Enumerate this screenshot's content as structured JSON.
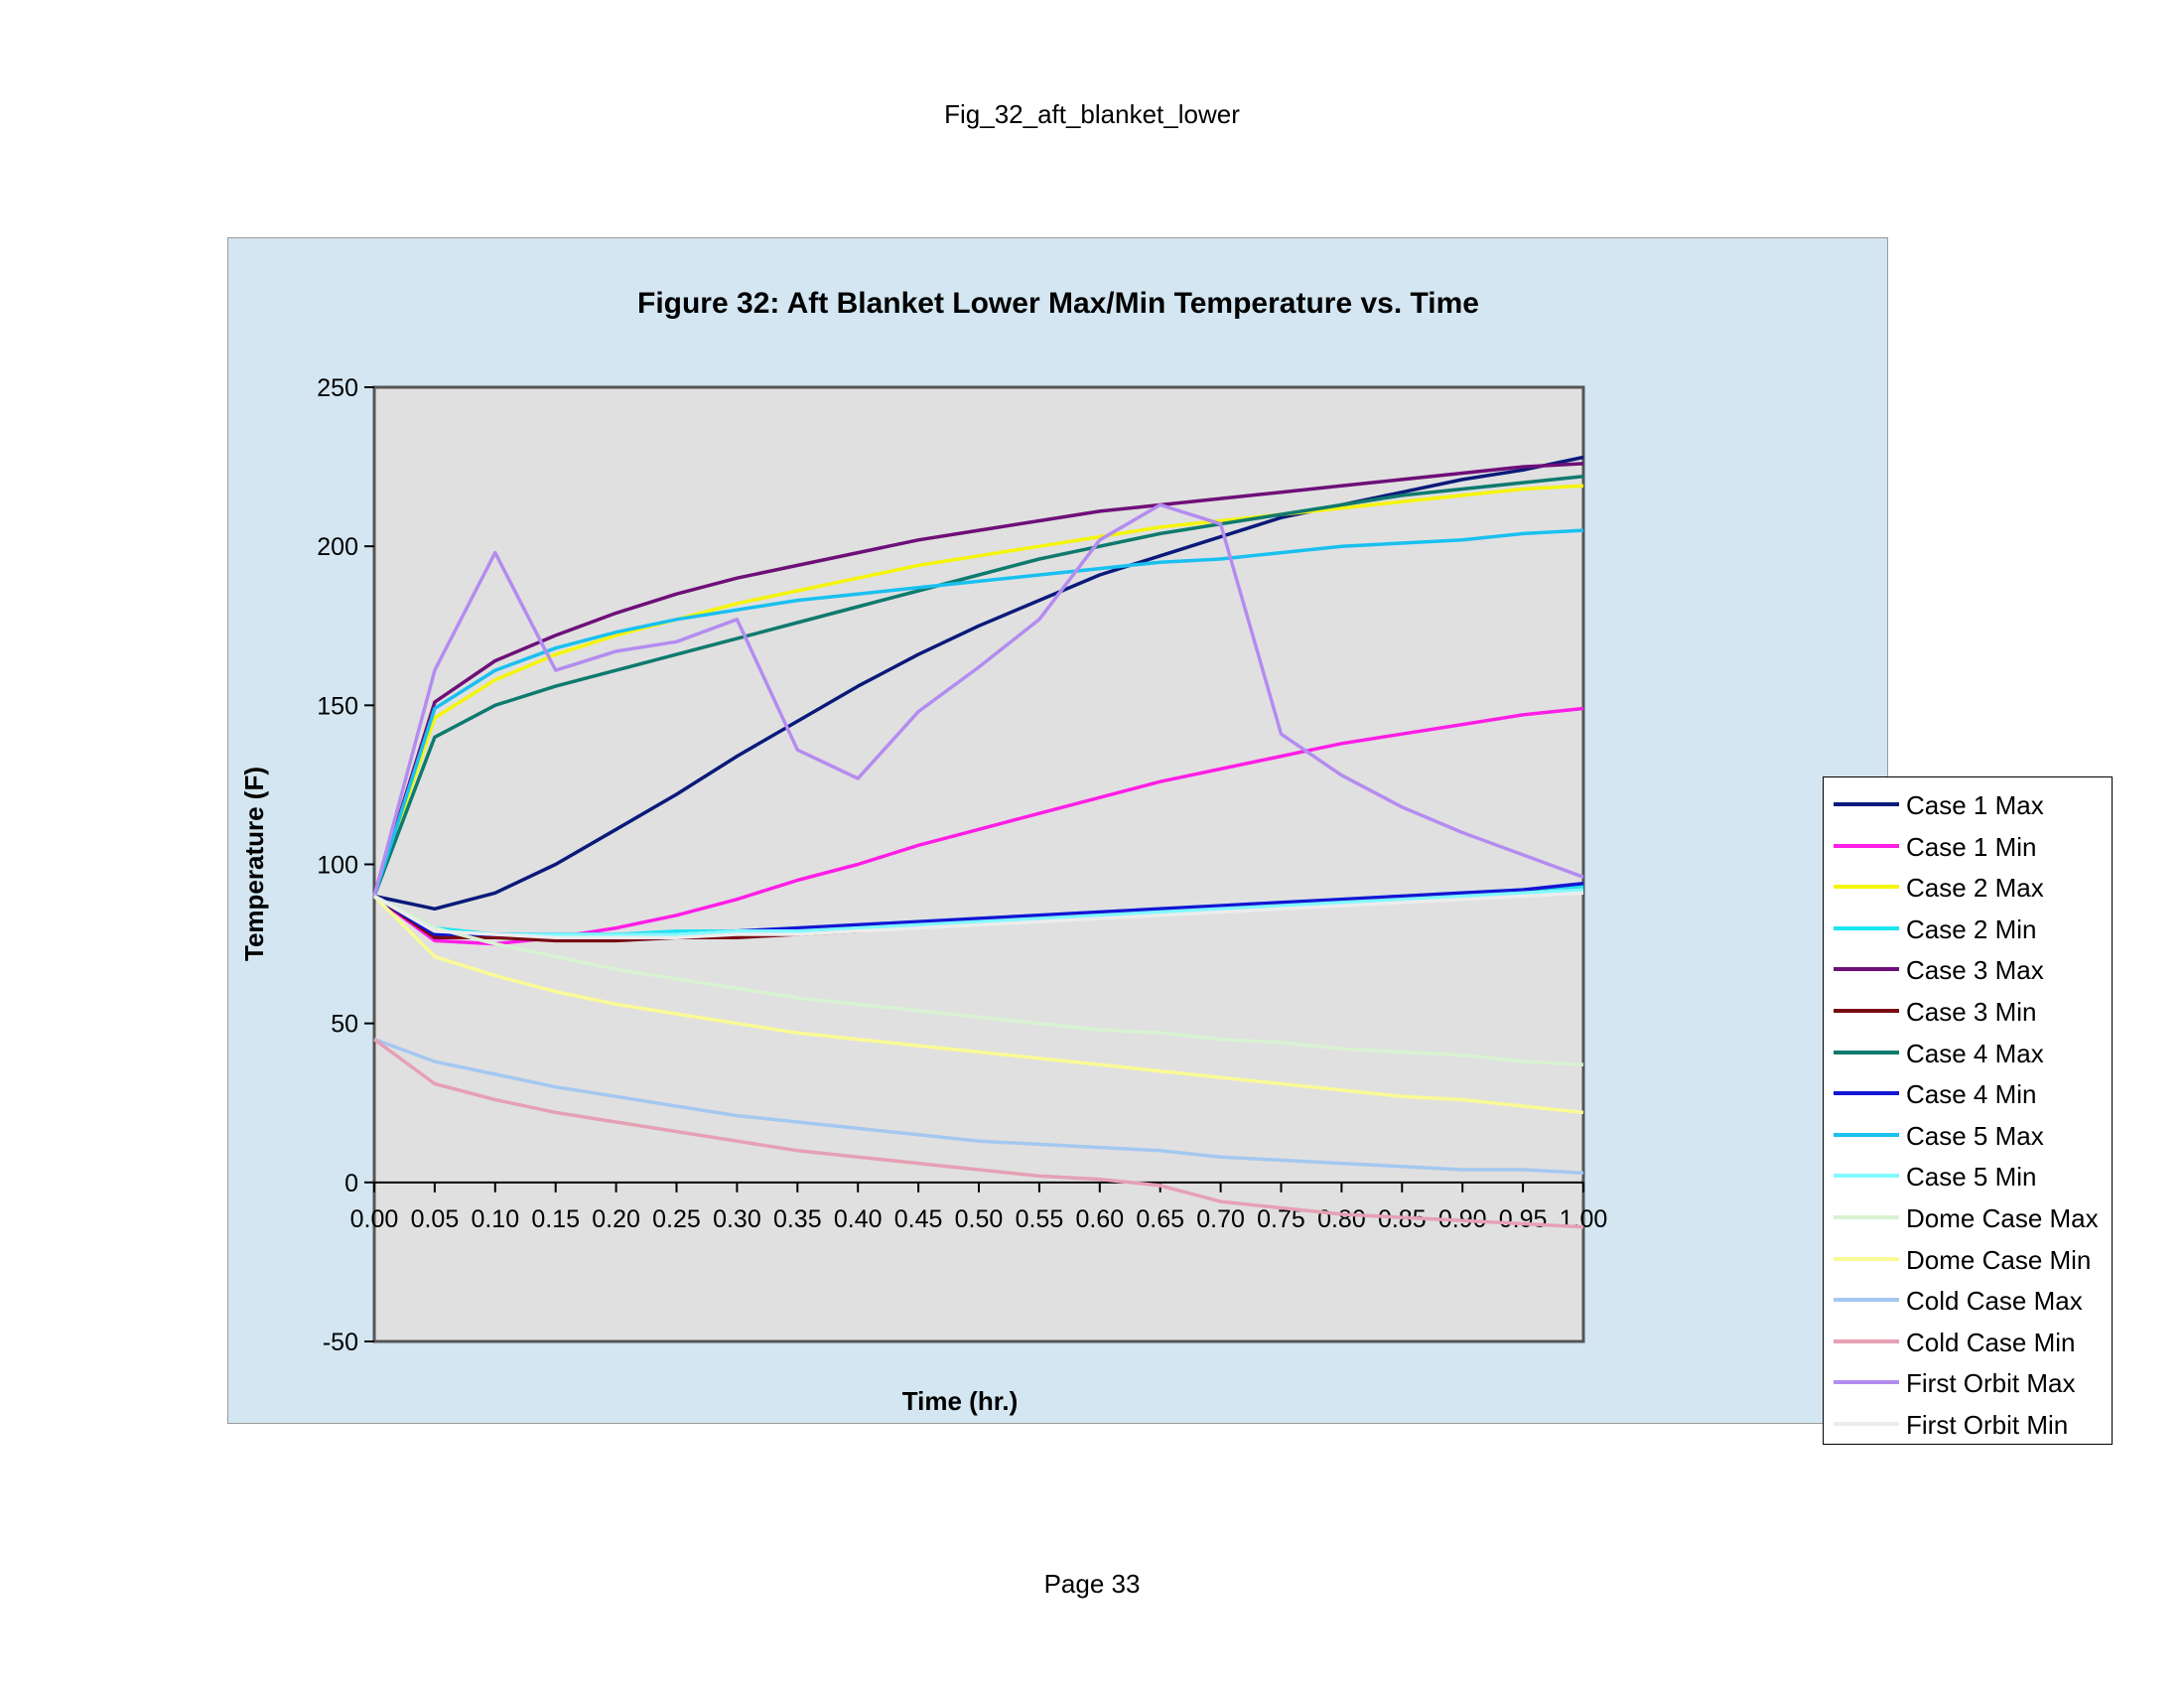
{
  "page": {
    "header": "Fig_32_aft_blanket_lower",
    "footer": "Page 33"
  },
  "chart_data": {
    "type": "line",
    "title": "Figure 32: Aft Blanket Lower Max/Min Temperature vs. Time",
    "xlabel": "Time (hr.)",
    "ylabel": "Temperature (F)",
    "xlim": [
      0,
      1
    ],
    "ylim": [
      -50,
      250
    ],
    "x": [
      0.0,
      0.05,
      0.1,
      0.15,
      0.2,
      0.25,
      0.3,
      0.35,
      0.4,
      0.45,
      0.5,
      0.55,
      0.6,
      0.65,
      0.7,
      0.75,
      0.8,
      0.85,
      0.9,
      0.95,
      1.0
    ],
    "x_tick_labels": [
      "0.00",
      "0.05",
      "0.10",
      "0.15",
      "0.20",
      "0.25",
      "0.30",
      "0.35",
      "0.40",
      "0.45",
      "0.50",
      "0.55",
      "0.60",
      "0.65",
      "0.70",
      "0.75",
      "0.80",
      "0.85",
      "0.90",
      "0.95",
      "1.00"
    ],
    "y_ticks": [
      250,
      200,
      150,
      100,
      50,
      0,
      -50
    ],
    "y_tick_labels": [
      "250",
      "200",
      "150",
      "100",
      "50",
      "0",
      "-50"
    ],
    "grid": false,
    "legend_position": "right",
    "plot_background": "#e0e0e0",
    "chart_background": "#d3e6f1",
    "series": [
      {
        "name": "Case 1 Max",
        "color": "#0a1a7a",
        "values": [
          90,
          86,
          91,
          100,
          111,
          122,
          134,
          145,
          156,
          166,
          175,
          183,
          191,
          197,
          203,
          209,
          213,
          217,
          221,
          224,
          228
        ]
      },
      {
        "name": "Case 1 Min",
        "color": "#ff1ee6",
        "values": [
          90,
          76,
          75,
          77,
          80,
          84,
          89,
          95,
          100,
          106,
          111,
          116,
          121,
          126,
          130,
          134,
          138,
          141,
          144,
          147,
          149
        ]
      },
      {
        "name": "Case 2 Max",
        "color": "#f5f50a",
        "values": [
          90,
          146,
          158,
          166,
          172,
          177,
          182,
          186,
          190,
          194,
          197,
          200,
          203,
          206,
          208,
          210,
          212,
          214,
          216,
          218,
          219
        ]
      },
      {
        "name": "Case 2 Min",
        "color": "#1ee6f0",
        "values": [
          90,
          80,
          78,
          78,
          78,
          79,
          79,
          80,
          81,
          82,
          83,
          84,
          85,
          86,
          87,
          88,
          89,
          90,
          91,
          92,
          93
        ]
      },
      {
        "name": "Case 3 Max",
        "color": "#6e0f78",
        "values": [
          90,
          151,
          164,
          172,
          179,
          185,
          190,
          194,
          198,
          202,
          205,
          208,
          211,
          213,
          215,
          217,
          219,
          221,
          223,
          225,
          226
        ]
      },
      {
        "name": "Case 3 Min",
        "color": "#780a14",
        "values": [
          90,
          77,
          77,
          76,
          76,
          77,
          77,
          78,
          79,
          81,
          82,
          83,
          84,
          85,
          86,
          87,
          88,
          89,
          90,
          91,
          92
        ]
      },
      {
        "name": "Case 4 Max",
        "color": "#0f7a6e",
        "values": [
          90,
          140,
          150,
          156,
          161,
          166,
          171,
          176,
          181,
          186,
          191,
          196,
          200,
          204,
          207,
          210,
          213,
          216,
          218,
          220,
          222
        ]
      },
      {
        "name": "Case 4 Min",
        "color": "#1414d2",
        "values": [
          90,
          78,
          78,
          78,
          78,
          78,
          79,
          80,
          81,
          82,
          83,
          84,
          85,
          86,
          87,
          88,
          89,
          90,
          91,
          92,
          94
        ]
      },
      {
        "name": "Case 5 Max",
        "color": "#19c0f0",
        "values": [
          90,
          149,
          161,
          168,
          173,
          177,
          180,
          183,
          185,
          187,
          189,
          191,
          193,
          195,
          196,
          198,
          200,
          201,
          202,
          204,
          205
        ]
      },
      {
        "name": "Case 5 Min",
        "color": "#80faff",
        "values": [
          90,
          79,
          78,
          78,
          78,
          78,
          79,
          79,
          80,
          81,
          82,
          83,
          84,
          85,
          86,
          87,
          88,
          89,
          90,
          91,
          92
        ]
      },
      {
        "name": "Dome Case Max",
        "color": "#d8f2d2",
        "values": [
          90,
          80,
          75,
          71,
          67,
          64,
          61,
          58,
          56,
          54,
          52,
          50,
          48,
          47,
          45,
          44,
          42,
          41,
          40,
          38,
          37
        ]
      },
      {
        "name": "Dome Case Min",
        "color": "#fafa96",
        "values": [
          90,
          71,
          65,
          60,
          56,
          53,
          50,
          47,
          45,
          43,
          41,
          39,
          37,
          35,
          33,
          31,
          29,
          27,
          26,
          24,
          22
        ]
      },
      {
        "name": "Cold Case Max",
        "color": "#a4c8f0",
        "values": [
          45,
          38,
          34,
          30,
          27,
          24,
          21,
          19,
          17,
          15,
          13,
          12,
          11,
          10,
          8,
          7,
          6,
          5,
          4,
          4,
          3
        ]
      },
      {
        "name": "Cold Case Min",
        "color": "#e6a0b4",
        "values": [
          45,
          31,
          26,
          22,
          19,
          16,
          13,
          10,
          8,
          6,
          4,
          2,
          1,
          -1,
          -6,
          -8,
          -10,
          -11,
          -12,
          -13,
          -14
        ]
      },
      {
        "name": "First Orbit Max",
        "color": "#b48cf0",
        "values": [
          90,
          161,
          198,
          161,
          167,
          170,
          177,
          136,
          127,
          148,
          162,
          177,
          202,
          213,
          207,
          141,
          128,
          118,
          110,
          103,
          96
        ]
      },
      {
        "name": "First Orbit Min",
        "color": "#ececec",
        "values": [
          90,
          79,
          78,
          77,
          77,
          77,
          78,
          78,
          79,
          80,
          81,
          82,
          83,
          84,
          85,
          86,
          87,
          88,
          89,
          90,
          91
        ]
      }
    ]
  }
}
